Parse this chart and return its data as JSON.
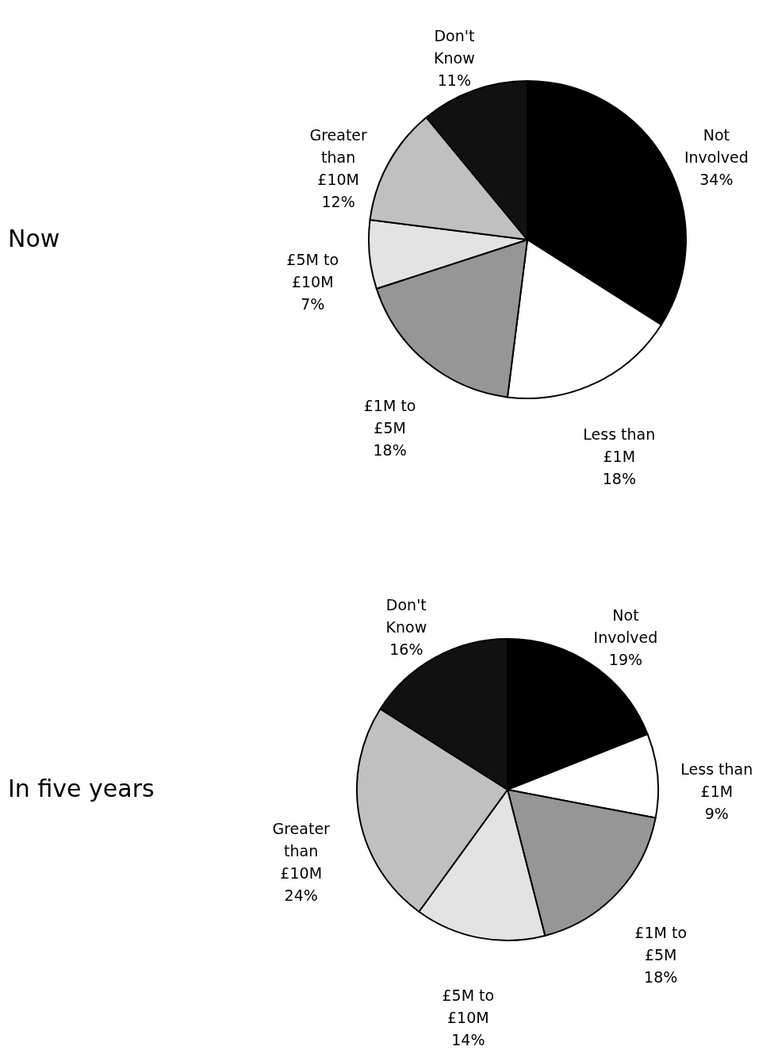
{
  "chart_data": [
    {
      "type": "pie",
      "title": "Now",
      "categories": [
        "Not\nInvolved",
        "Less than\n£1M",
        "£1M to\n£5M",
        "£5M to\n£10M",
        "Greater\nthan\n£10M",
        "Don't\nKnow"
      ],
      "values": [
        34,
        18,
        18,
        7,
        12,
        11
      ],
      "value_labels": [
        "34%",
        "18%",
        "18%",
        "7%",
        "12%",
        "11%"
      ],
      "colors": [
        "#000000",
        "#ffffff",
        "#969696",
        "#e3e3e3",
        "#c0c0c0",
        "#111111"
      ]
    },
    {
      "type": "pie",
      "title": "In five years",
      "categories": [
        "Not\nInvolved",
        "Less than\n£1M",
        "£1M to\n£5M",
        "£5M to\n£10M",
        "Greater\nthan\n£10M",
        "Don't\nKnow"
      ],
      "values": [
        19,
        9,
        18,
        14,
        24,
        16
      ],
      "value_labels": [
        "19%",
        "9%",
        "18%",
        "14%",
        "24%",
        "16%"
      ],
      "colors": [
        "#000000",
        "#ffffff",
        "#969696",
        "#e3e3e3",
        "#c0c0c0",
        "#111111"
      ]
    }
  ]
}
